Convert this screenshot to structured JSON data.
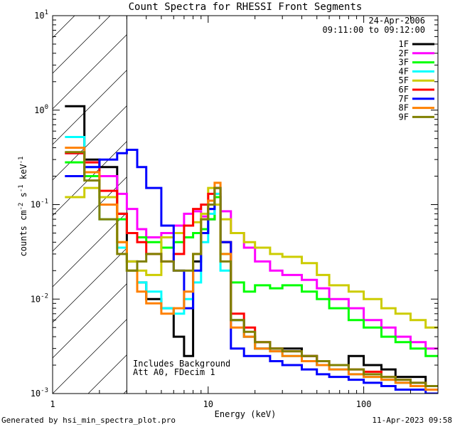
{
  "title": "Count Spectra for RHESSI Front Segments",
  "date_label": "24-Apr-2006",
  "time_range_label": "09:11:00 to 09:12:00",
  "footer_left": "Generated by hsi_min_spectra_plot.pro",
  "footer_right": "11-Apr-2023 09:58",
  "annotation_line1": "Includes Background",
  "annotation_line2": "Att A0, FDecim 1",
  "chart_data": {
    "type": "line",
    "title": "Count Spectra for RHESSI Front Segments",
    "xlabel": "Energy (keV)",
    "ylabel_parts": {
      "base": "counts cm",
      "exp1": "-2",
      "mid": " s",
      "exp2": "-1",
      "tail": " keV",
      "exp3": "-1"
    },
    "xscale": "log",
    "yscale": "log",
    "xlim": [
      1,
      300
    ],
    "ylim": [
      0.001,
      10
    ],
    "x_tick_labels": [
      "1",
      "10",
      "100"
    ],
    "y_tick_labels": [
      {
        "base": "10",
        "exp": "-3"
      },
      {
        "base": "10",
        "exp": "-2"
      },
      {
        "base": "10",
        "exp": "-1"
      },
      {
        "base": "10",
        "exp": "0"
      },
      {
        "base": "10",
        "exp": "1"
      }
    ],
    "hatched_region_kev": [
      1,
      3
    ],
    "x_edges_kev": [
      1.2,
      1.6,
      2.0,
      2.6,
      3.0,
      3.5,
      4.0,
      5.0,
      6.0,
      7.0,
      8.0,
      9.0,
      10.0,
      11.0,
      12.0,
      14.0,
      17.0,
      20.0,
      25.0,
      30.0,
      40.0,
      50.0,
      60.0,
      80.0,
      100.0,
      130.0,
      160.0,
      200.0,
      250.0,
      300.0
    ],
    "series": [
      {
        "name": "1F",
        "color": "#000000",
        "values": [
          1.1,
          0.3,
          0.25,
          0.08,
          0.025,
          0.015,
          0.01,
          0.008,
          0.004,
          0.0025,
          0.025,
          0.05,
          0.07,
          0.12,
          0.04,
          0.006,
          0.004,
          0.003,
          0.003,
          0.003,
          0.0025,
          0.002,
          0.002,
          0.0025,
          0.002,
          0.0018,
          0.0015,
          0.0015,
          0.0012
        ]
      },
      {
        "name": "2F",
        "color": "#ff00ff",
        "values": [
          0.35,
          0.28,
          0.2,
          0.13,
          0.09,
          0.055,
          0.045,
          0.05,
          0.06,
          0.08,
          0.085,
          0.075,
          0.09,
          0.13,
          0.085,
          0.05,
          0.035,
          0.025,
          0.02,
          0.018,
          0.016,
          0.013,
          0.01,
          0.008,
          0.006,
          0.005,
          0.004,
          0.0035,
          0.003
        ]
      },
      {
        "name": "3F",
        "color": "#00ff00",
        "values": [
          0.28,
          0.2,
          0.12,
          0.07,
          0.05,
          0.045,
          0.04,
          0.035,
          0.04,
          0.045,
          0.05,
          0.055,
          0.07,
          0.12,
          0.03,
          0.015,
          0.012,
          0.014,
          0.013,
          0.014,
          0.012,
          0.01,
          0.008,
          0.006,
          0.005,
          0.004,
          0.0035,
          0.003,
          0.0025
        ]
      },
      {
        "name": "4F",
        "color": "#00ffff",
        "values": [
          0.52,
          0.25,
          0.07,
          0.035,
          0.02,
          0.015,
          0.012,
          0.008,
          0.007,
          0.01,
          0.015,
          0.04,
          0.08,
          0.13,
          0.02,
          0.006,
          0.004,
          0.003,
          0.0028,
          0.0025,
          0.0022,
          0.002,
          0.0018,
          0.0016,
          0.0015,
          0.0014,
          0.0013,
          0.0012,
          0.0011
        ]
      },
      {
        "name": "5F",
        "color": "#cccc00",
        "values": [
          0.12,
          0.15,
          0.12,
          0.04,
          0.025,
          0.02,
          0.018,
          0.045,
          0.05,
          0.06,
          0.065,
          0.08,
          0.15,
          0.1,
          0.07,
          0.05,
          0.04,
          0.035,
          0.03,
          0.028,
          0.024,
          0.018,
          0.014,
          0.012,
          0.01,
          0.008,
          0.007,
          0.006,
          0.005
        ]
      },
      {
        "name": "6F",
        "color": "#ff0000",
        "values": [
          0.35,
          0.28,
          0.14,
          0.08,
          0.05,
          0.04,
          0.03,
          0.025,
          0.03,
          0.06,
          0.09,
          0.1,
          0.13,
          0.15,
          0.04,
          0.007,
          0.005,
          0.0035,
          0.003,
          0.0028,
          0.0025,
          0.0022,
          0.002,
          0.0018,
          0.0017,
          0.0015,
          0.0014,
          0.0013,
          0.0012
        ]
      },
      {
        "name": "7F",
        "color": "#0000ff",
        "values": [
          0.2,
          0.25,
          0.3,
          0.35,
          0.38,
          0.25,
          0.15,
          0.06,
          0.02,
          0.008,
          0.02,
          0.05,
          0.09,
          0.15,
          0.04,
          0.003,
          0.0025,
          0.0025,
          0.0022,
          0.002,
          0.0018,
          0.0016,
          0.0015,
          0.0014,
          0.0013,
          0.0012,
          0.0011,
          0.0011,
          0.001
        ]
      },
      {
        "name": "8F",
        "color": "#ff8000",
        "values": [
          0.4,
          0.22,
          0.1,
          0.04,
          0.02,
          0.012,
          0.009,
          0.007,
          0.008,
          0.012,
          0.03,
          0.07,
          0.11,
          0.17,
          0.03,
          0.005,
          0.004,
          0.003,
          0.0028,
          0.0025,
          0.0022,
          0.002,
          0.0018,
          0.0016,
          0.0015,
          0.0014,
          0.0013,
          0.0012,
          0.0011
        ]
      },
      {
        "name": "9F",
        "color": "#808000",
        "values": [
          0.36,
          0.18,
          0.07,
          0.03,
          0.02,
          0.025,
          0.03,
          0.025,
          0.02,
          0.02,
          0.03,
          0.07,
          0.1,
          0.15,
          0.025,
          0.006,
          0.0045,
          0.0035,
          0.003,
          0.0028,
          0.0025,
          0.0022,
          0.002,
          0.0018,
          0.0016,
          0.0015,
          0.0014,
          0.0013,
          0.0012
        ]
      }
    ]
  }
}
